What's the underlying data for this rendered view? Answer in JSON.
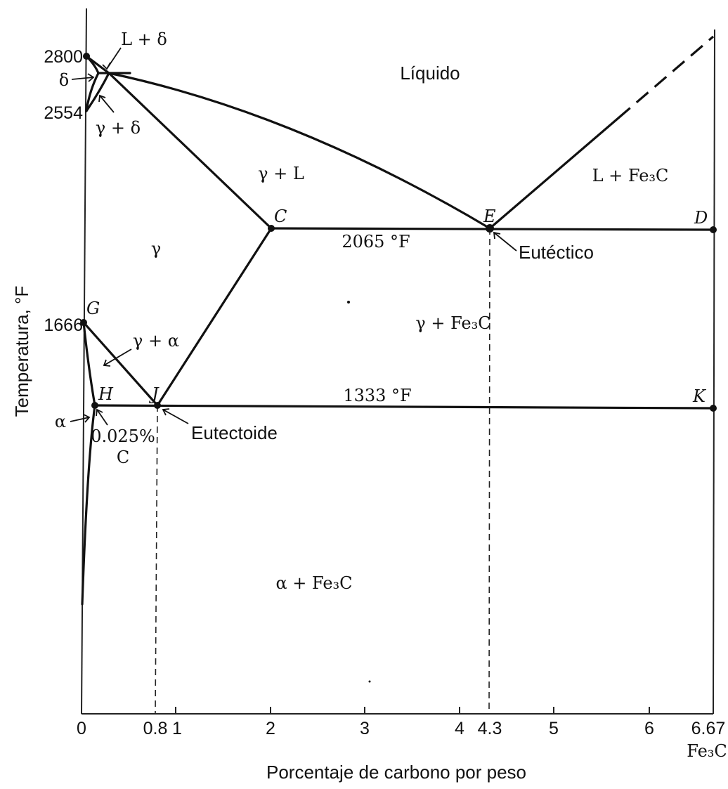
{
  "axes": {
    "x_label": "Porcentaje de carbono por peso",
    "y_label": "Temperatura, °F",
    "x_ticks": [
      "0",
      "0.8",
      "1",
      "2",
      "3",
      "4",
      "4.3",
      "5",
      "6",
      "6.67"
    ],
    "x_tick_extra": "Fe₃C",
    "y_ticks": [
      "2800",
      "2554",
      "1666"
    ]
  },
  "points": {
    "C": "C",
    "D": "D",
    "E": "E",
    "G": "G",
    "H": "H",
    "J": "J",
    "K": "K"
  },
  "regions": {
    "liquid": "Líquido",
    "gamma_L": "γ + L",
    "L_Fe3C": "L + Fe₃C",
    "gamma": "γ",
    "gamma_Fe3C": "γ + Fe₃C",
    "alpha_Fe3C": "α + Fe₃C",
    "L_delta": "L + δ",
    "delta": "δ",
    "gamma_delta": "γ + δ",
    "gamma_alpha": "γ + α",
    "alpha": "α"
  },
  "annotations": {
    "eutectic_temp": "2065 °F",
    "eutectoid_temp": "1333 °F",
    "eutectic": "Eutéctico",
    "eutectoid": "Eutectoide",
    "carbon_pct": "0.025%",
    "carbon_symbol": "C"
  }
}
